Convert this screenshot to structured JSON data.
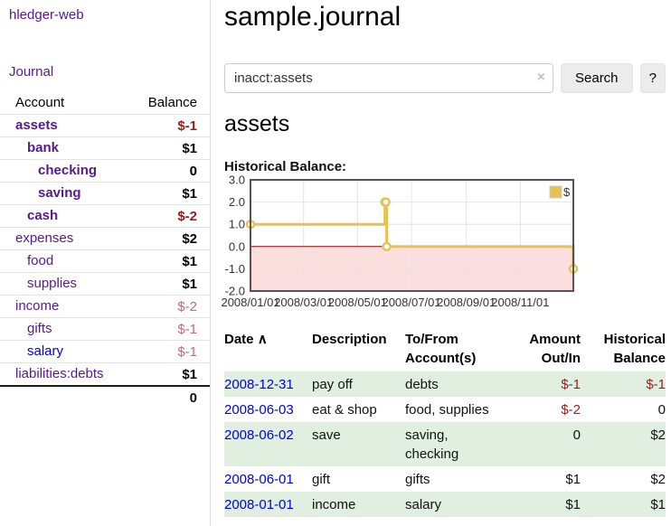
{
  "sidebar": {
    "app_title": "hledger-web",
    "nav_journal": "Journal",
    "accounts_table": {
      "headers": {
        "account": "Account",
        "balance": "Balance"
      },
      "rows": [
        {
          "name": "assets",
          "indent": 0,
          "bold": true,
          "balance": "$-1",
          "balance_style": "neg-strong"
        },
        {
          "name": "bank",
          "indent": 1,
          "bold": true,
          "balance": "$1",
          "balance_style": "pos"
        },
        {
          "name": "checking",
          "indent": 2,
          "bold": true,
          "balance": "0",
          "balance_style": "pos"
        },
        {
          "name": "saving",
          "indent": 2,
          "bold": true,
          "balance": "$1",
          "balance_style": "pos"
        },
        {
          "name": "cash",
          "indent": 1,
          "bold": true,
          "balance": "$-2",
          "balance_style": "neg-strong"
        },
        {
          "name": "expenses",
          "indent": 0,
          "bold": false,
          "balance": "$2",
          "balance_style": "pos"
        },
        {
          "name": "food",
          "indent": 1,
          "bold": false,
          "balance": "$1",
          "balance_style": "pos"
        },
        {
          "name": "supplies",
          "indent": 1,
          "bold": false,
          "balance": "$1",
          "balance_style": "pos"
        },
        {
          "name": "income",
          "indent": 0,
          "bold": false,
          "balance": "$-2",
          "balance_style": "neg-soft"
        },
        {
          "name": "gifts",
          "indent": 1,
          "bold": false,
          "balance": "$-1",
          "balance_style": "neg-soft"
        },
        {
          "name": "salary",
          "indent": 1,
          "bold": false,
          "link_color": "blue",
          "balance": "$-1",
          "balance_style": "neg-soft"
        },
        {
          "name": "liabilities:debts",
          "indent": 0,
          "bold": false,
          "balance": "$1",
          "balance_style": "pos"
        }
      ],
      "total": "0"
    }
  },
  "main": {
    "title": "sample.journal",
    "search": {
      "value": "inacct:assets",
      "clear_icon": "×",
      "button_label": "Search",
      "help_label": "?"
    },
    "account_heading": "assets",
    "chart_heading": "Historical Balance:"
  },
  "chart_data": {
    "type": "line",
    "title": "Historical Balance",
    "step": "after",
    "series": [
      {
        "name": "$",
        "color": "#e6c254",
        "points": [
          {
            "date": "2008-01-01",
            "x": 0,
            "y": 1
          },
          {
            "date": "2008-06-01",
            "x": 152,
            "y": 2
          },
          {
            "date": "2008-06-02",
            "x": 153,
            "y": 2
          },
          {
            "date": "2008-06-03",
            "x": 154,
            "y": 0
          },
          {
            "date": "2008-12-31",
            "x": 365,
            "y": -1
          }
        ]
      }
    ],
    "xlim": [
      0,
      365
    ],
    "ylim": [
      -2,
      3
    ],
    "yticks": [
      3,
      2,
      1,
      0,
      -1,
      -2
    ],
    "xticks": [
      {
        "x": 0,
        "label": "2008/01/01"
      },
      {
        "x": 60,
        "label": "2008/03/01"
      },
      {
        "x": 121,
        "label": "2008/05/01"
      },
      {
        "x": 182,
        "label": "2008/07/01"
      },
      {
        "x": 244,
        "label": "2008/09/01"
      },
      {
        "x": 305,
        "label": "2008/11/01"
      }
    ],
    "legend": {
      "label": "$",
      "position": "top-right"
    },
    "grid": true,
    "negative_region_color": "#fbdede",
    "zero_line_color": "#8b0000",
    "border_color": "#545454",
    "grid_color": "#e4e4e4"
  },
  "register_table": {
    "headers": {
      "date": "Date",
      "sort_icon": "∧",
      "description": "Description",
      "accounts_line1": "To/From",
      "accounts_line2": "Account(s)",
      "amount_line1": "Amount",
      "amount_line2": "Out/In",
      "balance_line1": "Historical",
      "balance_line2": "Balance"
    },
    "rows": [
      {
        "date": "2008-12-31",
        "description": "pay off",
        "accounts": "debts",
        "amount": "$-1",
        "amount_negative": true,
        "balance": "$-1",
        "balance_negative": true
      },
      {
        "date": "2008-06-03",
        "description": "eat & shop",
        "accounts": "food, supplies",
        "amount": "$-2",
        "amount_negative": true,
        "balance": "0",
        "balance_negative": false
      },
      {
        "date": "2008-06-02",
        "description": "save",
        "accounts": "saving,\nchecking",
        "amount": "0",
        "amount_negative": false,
        "balance": "$2",
        "balance_negative": false
      },
      {
        "date": "2008-06-01",
        "description": "gift",
        "accounts": "gifts",
        "amount": "$1",
        "amount_negative": false,
        "balance": "$2",
        "balance_negative": false
      },
      {
        "date": "2008-01-01",
        "description": "income",
        "accounts": "salary",
        "amount": "$1",
        "amount_negative": false,
        "balance": "$1",
        "balance_negative": false
      }
    ]
  },
  "colors": {
    "link_purple": "#551a8b",
    "link_blue": "#0000e0",
    "negative_strong": "#8f2121",
    "negative_soft": "#bc6c77",
    "row_green": "#e1efe0",
    "chart_line_gold": "#e6c254",
    "chart_negative_pink": "#fbdede",
    "chart_zero_line": "#8b0000"
  }
}
